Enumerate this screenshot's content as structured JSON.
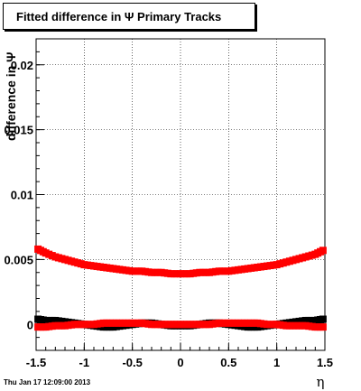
{
  "title": "Fitted difference in  Ψ  Primary Tracks",
  "footer": "Thu Jan 17 12:09:00 2013",
  "chart_data": {
    "type": "scatter",
    "title": "Fitted difference in  Ψ  Primary Tracks",
    "xlabel": "η",
    "ylabel": "difference in Ψ",
    "xlim": [
      -1.5,
      1.5
    ],
    "ylim": [
      -0.002,
      0.022
    ],
    "grid": true,
    "x_ticks": [
      "-1.5",
      "-1",
      "-0.5",
      "0",
      "0.5",
      "1",
      "1.5"
    ],
    "x_tick_values": [
      -1.5,
      -1,
      -0.5,
      0,
      0.5,
      1,
      1.5
    ],
    "y_ticks": [
      "0",
      "0.005",
      "0.01",
      "0.015",
      "0.02"
    ],
    "y_tick_values": [
      0,
      0.005,
      0.01,
      0.015,
      0.02
    ],
    "series": [
      {
        "color": "#ff0000",
        "marker": "square",
        "x": [
          -1.48,
          -1.4,
          -1.3,
          -1.2,
          -1.1,
          -1.0,
          -0.9,
          -0.8,
          -0.7,
          -0.6,
          -0.5,
          -0.4,
          -0.3,
          -0.2,
          -0.1,
          0.0,
          0.1,
          0.2,
          0.3,
          0.4,
          0.5,
          0.6,
          0.7,
          0.8,
          0.9,
          1.0,
          1.1,
          1.2,
          1.3,
          1.4,
          1.48
        ],
        "y": [
          0.0058,
          0.0055,
          0.0052,
          0.005,
          0.0048,
          0.0046,
          0.0045,
          0.0044,
          0.0043,
          0.0042,
          0.0041,
          0.0041,
          0.004,
          0.004,
          0.0039,
          0.0039,
          0.0039,
          0.004,
          0.004,
          0.0041,
          0.0041,
          0.0042,
          0.0043,
          0.0044,
          0.0045,
          0.0046,
          0.0048,
          0.005,
          0.0052,
          0.0054,
          0.0057
        ]
      },
      {
        "color": "#000000",
        "marker": "square",
        "x": [
          -1.48,
          -1.4,
          -1.3,
          -1.2,
          -1.1,
          -1.0,
          -0.9,
          -0.8,
          -0.7,
          -0.6,
          -0.5,
          -0.4,
          -0.3,
          -0.2,
          -0.1,
          0.0,
          0.1,
          0.2,
          0.3,
          0.4,
          0.5,
          0.6,
          0.7,
          0.8,
          0.9,
          1.0,
          1.1,
          1.2,
          1.3,
          1.4,
          1.48
        ],
        "y": [
          0.0004,
          0.0003,
          0.0003,
          0.0002,
          0.0001,
          0.0,
          -0.0001,
          -0.0002,
          -0.0002,
          -0.0001,
          0.0,
          0.0001,
          0.0001,
          0.0,
          -0.0001,
          -0.0001,
          -0.0001,
          0.0,
          0.0001,
          0.0001,
          0.0,
          -0.0001,
          -0.0002,
          -0.0002,
          -0.0001,
          0.0,
          0.0001,
          0.0002,
          0.0003,
          0.0003,
          0.0004
        ]
      },
      {
        "color": "#ff0000",
        "marker": "square",
        "x": [
          -1.48,
          -1.4,
          -1.3,
          -1.2,
          -1.1,
          -1.0,
          -0.9,
          -0.8,
          -0.7,
          -0.6,
          -0.5,
          -0.4,
          -0.3,
          -0.2,
          -0.1,
          0.0,
          0.1,
          0.2,
          0.3,
          0.4,
          0.5,
          0.6,
          0.7,
          0.8,
          0.9,
          1.0,
          1.1,
          1.2,
          1.3,
          1.4,
          1.48
        ],
        "y": [
          -0.0002,
          -0.0002,
          -0.0001,
          -0.0001,
          0.0,
          0.0,
          0.0,
          0.0001,
          0.0001,
          0.0001,
          0.0001,
          0.0001,
          0.0,
          0.0,
          0.0,
          0.0,
          0.0,
          0.0,
          0.0,
          0.0001,
          0.0001,
          0.0001,
          0.0001,
          0.0001,
          0.0,
          0.0,
          -0.0001,
          -0.0001,
          -0.0001,
          -0.0002,
          -0.0002
        ]
      }
    ]
  }
}
